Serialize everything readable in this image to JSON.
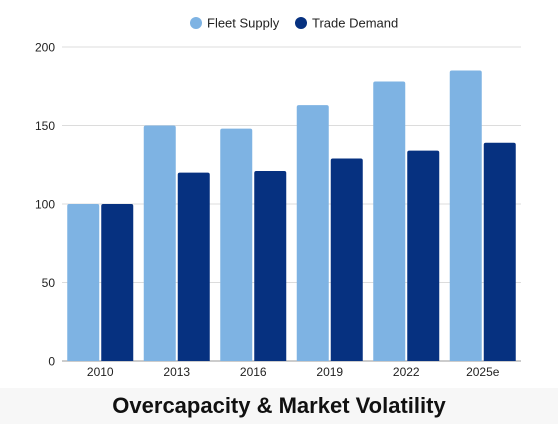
{
  "chart_data": {
    "type": "bar",
    "title": "Overcapacity & Market Volatility",
    "categories": [
      "2010",
      "2013",
      "2016",
      "2019",
      "2022",
      "2025e"
    ],
    "series": [
      {
        "name": "Fleet Supply",
        "color": "#7eb3e3",
        "values": [
          100,
          150,
          148,
          163,
          178,
          185
        ]
      },
      {
        "name": "Trade Demand",
        "color": "#063180",
        "values": [
          100,
          120,
          121,
          129,
          134,
          139
        ]
      }
    ],
    "ylim": [
      0,
      200
    ],
    "yticks": [
      0,
      50,
      100,
      150,
      200
    ],
    "grid": true,
    "legend": "top-center"
  }
}
